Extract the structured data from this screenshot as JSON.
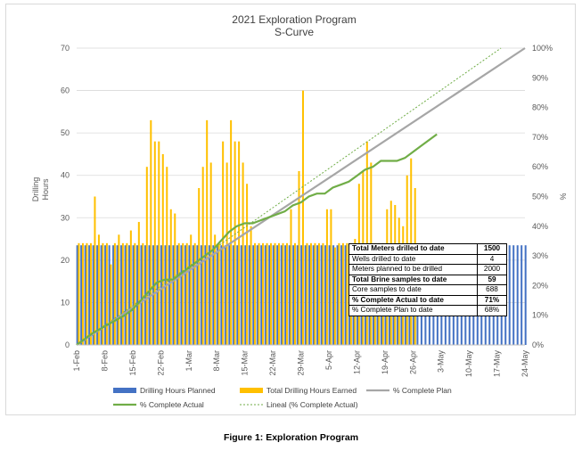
{
  "caption": "Figure 1: Exploration Program",
  "summary_table": [
    {
      "label": "Total Meters drilled to date",
      "value": "1500",
      "bold": true
    },
    {
      "label": "Wells drilled to date",
      "value": "4",
      "bold": false
    },
    {
      "label": "Meters planned to be drilled",
      "value": "2000",
      "bold": false
    },
    {
      "label": "Total Brine samples to date",
      "value": "59",
      "bold": true
    },
    {
      "label": "Core samples to date",
      "value": "688",
      "bold": false
    },
    {
      "label": "% Complete Actual to date",
      "value": "71%",
      "bold": true
    },
    {
      "label": "% Complete Plan to date",
      "value": "68%",
      "bold": false
    }
  ],
  "colors": {
    "planned": "#4472c4",
    "earned": "#ffc000",
    "plan_line": "#a6a6a6",
    "actual_line": "#70ad47",
    "trend_line": "#70ad47"
  },
  "chart_data": {
    "type": "bar",
    "title": "2021 Exploration Program",
    "subtitle": "S-Curve",
    "ylabel": "Drilling\nHours",
    "y2label": "%",
    "ylim": [
      0,
      70
    ],
    "yticks": [
      "0",
      "10",
      "20",
      "30",
      "40",
      "50",
      "60",
      "70"
    ],
    "y2lim": [
      0,
      100
    ],
    "y2ticks": [
      "0%",
      "10%",
      "20%",
      "30%",
      "40%",
      "50%",
      "60%",
      "70%",
      "80%",
      "90%",
      "100%"
    ],
    "xlim": [
      0,
      112
    ],
    "x_date_start": "1-Feb",
    "xticks": [
      {
        "label": "1-Feb",
        "x": 0
      },
      {
        "label": "8-Feb",
        "x": 7
      },
      {
        "label": "15-Feb",
        "x": 14
      },
      {
        "label": "22-Feb",
        "x": 21
      },
      {
        "label": "1-Mar",
        "x": 28
      },
      {
        "label": "8-Mar",
        "x": 35
      },
      {
        "label": "15-Mar",
        "x": 42
      },
      {
        "label": "22-Mar",
        "x": 49
      },
      {
        "label": "29-Mar",
        "x": 56
      },
      {
        "label": "5-Apr",
        "x": 63
      },
      {
        "label": "12-Apr",
        "x": 70
      },
      {
        "label": "19-Apr",
        "x": 77
      },
      {
        "label": "26-Apr",
        "x": 84
      },
      {
        "label": "3-May",
        "x": 91
      },
      {
        "label": "10-May",
        "x": 98
      },
      {
        "label": "17-May",
        "x": 105
      },
      {
        "label": "24-May",
        "x": 112
      }
    ],
    "legend": [
      {
        "name": "Drilling Hours Planned",
        "kind": "bar",
        "color": "#4472c4"
      },
      {
        "name": "Total Drilling Hours Earned",
        "kind": "bar",
        "color": "#ffc000"
      },
      {
        "name": "% Complete Plan",
        "kind": "line",
        "color": "#a6a6a6"
      },
      {
        "name": "% Complete Actual",
        "kind": "line",
        "color": "#70ad47"
      },
      {
        "name": "Lineal (% Complete Actual)",
        "kind": "dotted",
        "color": "#70ad47"
      }
    ],
    "planned_hours_per_day": 23.5,
    "planned_days": 113,
    "earned": [
      [
        0,
        24
      ],
      [
        1,
        24
      ],
      [
        2,
        24
      ],
      [
        3,
        24
      ],
      [
        4,
        35
      ],
      [
        5,
        26
      ],
      [
        6,
        24
      ],
      [
        7,
        24
      ],
      [
        8,
        19
      ],
      [
        9,
        24
      ],
      [
        10,
        26
      ],
      [
        11,
        24
      ],
      [
        12,
        24
      ],
      [
        13,
        27
      ],
      [
        14,
        24
      ],
      [
        15,
        29
      ],
      [
        16,
        24
      ],
      [
        17,
        42
      ],
      [
        18,
        53
      ],
      [
        19,
        48
      ],
      [
        20,
        48
      ],
      [
        21,
        45
      ],
      [
        22,
        42
      ],
      [
        23,
        32
      ],
      [
        24,
        31
      ],
      [
        25,
        24
      ],
      [
        26,
        24
      ],
      [
        27,
        24
      ],
      [
        28,
        26
      ],
      [
        29,
        24
      ],
      [
        30,
        37
      ],
      [
        31,
        42
      ],
      [
        32,
        53
      ],
      [
        33,
        43
      ],
      [
        34,
        26
      ],
      [
        35,
        24
      ],
      [
        36,
        48
      ],
      [
        37,
        43
      ],
      [
        38,
        53
      ],
      [
        39,
        48
      ],
      [
        40,
        48
      ],
      [
        41,
        43
      ],
      [
        42,
        38
      ],
      [
        43,
        28
      ],
      [
        44,
        24
      ],
      [
        45,
        24
      ],
      [
        46,
        24
      ],
      [
        47,
        24
      ],
      [
        48,
        24
      ],
      [
        49,
        24
      ],
      [
        50,
        24
      ],
      [
        51,
        24
      ],
      [
        52,
        24
      ],
      [
        53,
        32
      ],
      [
        54,
        24
      ],
      [
        55,
        41
      ],
      [
        56,
        60
      ],
      [
        57,
        24
      ],
      [
        58,
        24
      ],
      [
        59,
        24
      ],
      [
        60,
        24
      ],
      [
        61,
        24
      ],
      [
        62,
        32
      ],
      [
        63,
        32
      ],
      [
        64,
        23
      ],
      [
        65,
        24
      ],
      [
        66,
        24
      ],
      [
        67,
        24
      ],
      [
        68,
        24
      ],
      [
        69,
        25
      ],
      [
        70,
        38
      ],
      [
        71,
        41
      ],
      [
        72,
        48
      ],
      [
        73,
        43
      ],
      [
        74,
        24
      ],
      [
        75,
        24
      ],
      [
        76,
        24
      ],
      [
        77,
        32
      ],
      [
        78,
        34
      ],
      [
        79,
        33
      ],
      [
        80,
        30
      ],
      [
        81,
        28
      ],
      [
        82,
        40
      ],
      [
        83,
        44
      ],
      [
        84,
        37
      ]
    ],
    "plan_pct": [
      [
        0,
        0
      ],
      [
        112,
        100
      ]
    ],
    "actual_pct": [
      [
        0,
        0
      ],
      [
        4,
        4
      ],
      [
        8,
        7
      ],
      [
        12,
        10
      ],
      [
        14,
        12
      ],
      [
        16,
        15
      ],
      [
        18,
        18
      ],
      [
        20,
        21
      ],
      [
        22,
        22
      ],
      [
        24,
        22
      ],
      [
        26,
        24
      ],
      [
        28,
        26
      ],
      [
        30,
        28
      ],
      [
        32,
        30
      ],
      [
        34,
        32
      ],
      [
        36,
        35
      ],
      [
        38,
        38
      ],
      [
        40,
        40
      ],
      [
        42,
        41
      ],
      [
        44,
        41
      ],
      [
        46,
        42
      ],
      [
        48,
        43
      ],
      [
        50,
        44
      ],
      [
        52,
        45
      ],
      [
        54,
        47
      ],
      [
        56,
        48
      ],
      [
        58,
        50
      ],
      [
        60,
        51
      ],
      [
        62,
        51
      ],
      [
        64,
        53
      ],
      [
        66,
        54
      ],
      [
        68,
        55
      ],
      [
        70,
        57
      ],
      [
        72,
        59
      ],
      [
        74,
        60
      ],
      [
        76,
        62
      ],
      [
        78,
        62
      ],
      [
        80,
        62
      ],
      [
        82,
        63
      ],
      [
        84,
        65
      ],
      [
        86,
        67
      ],
      [
        88,
        69
      ],
      [
        90,
        71
      ]
    ],
    "trend_pct": [
      [
        0,
        0
      ],
      [
        106,
        100
      ]
    ]
  }
}
